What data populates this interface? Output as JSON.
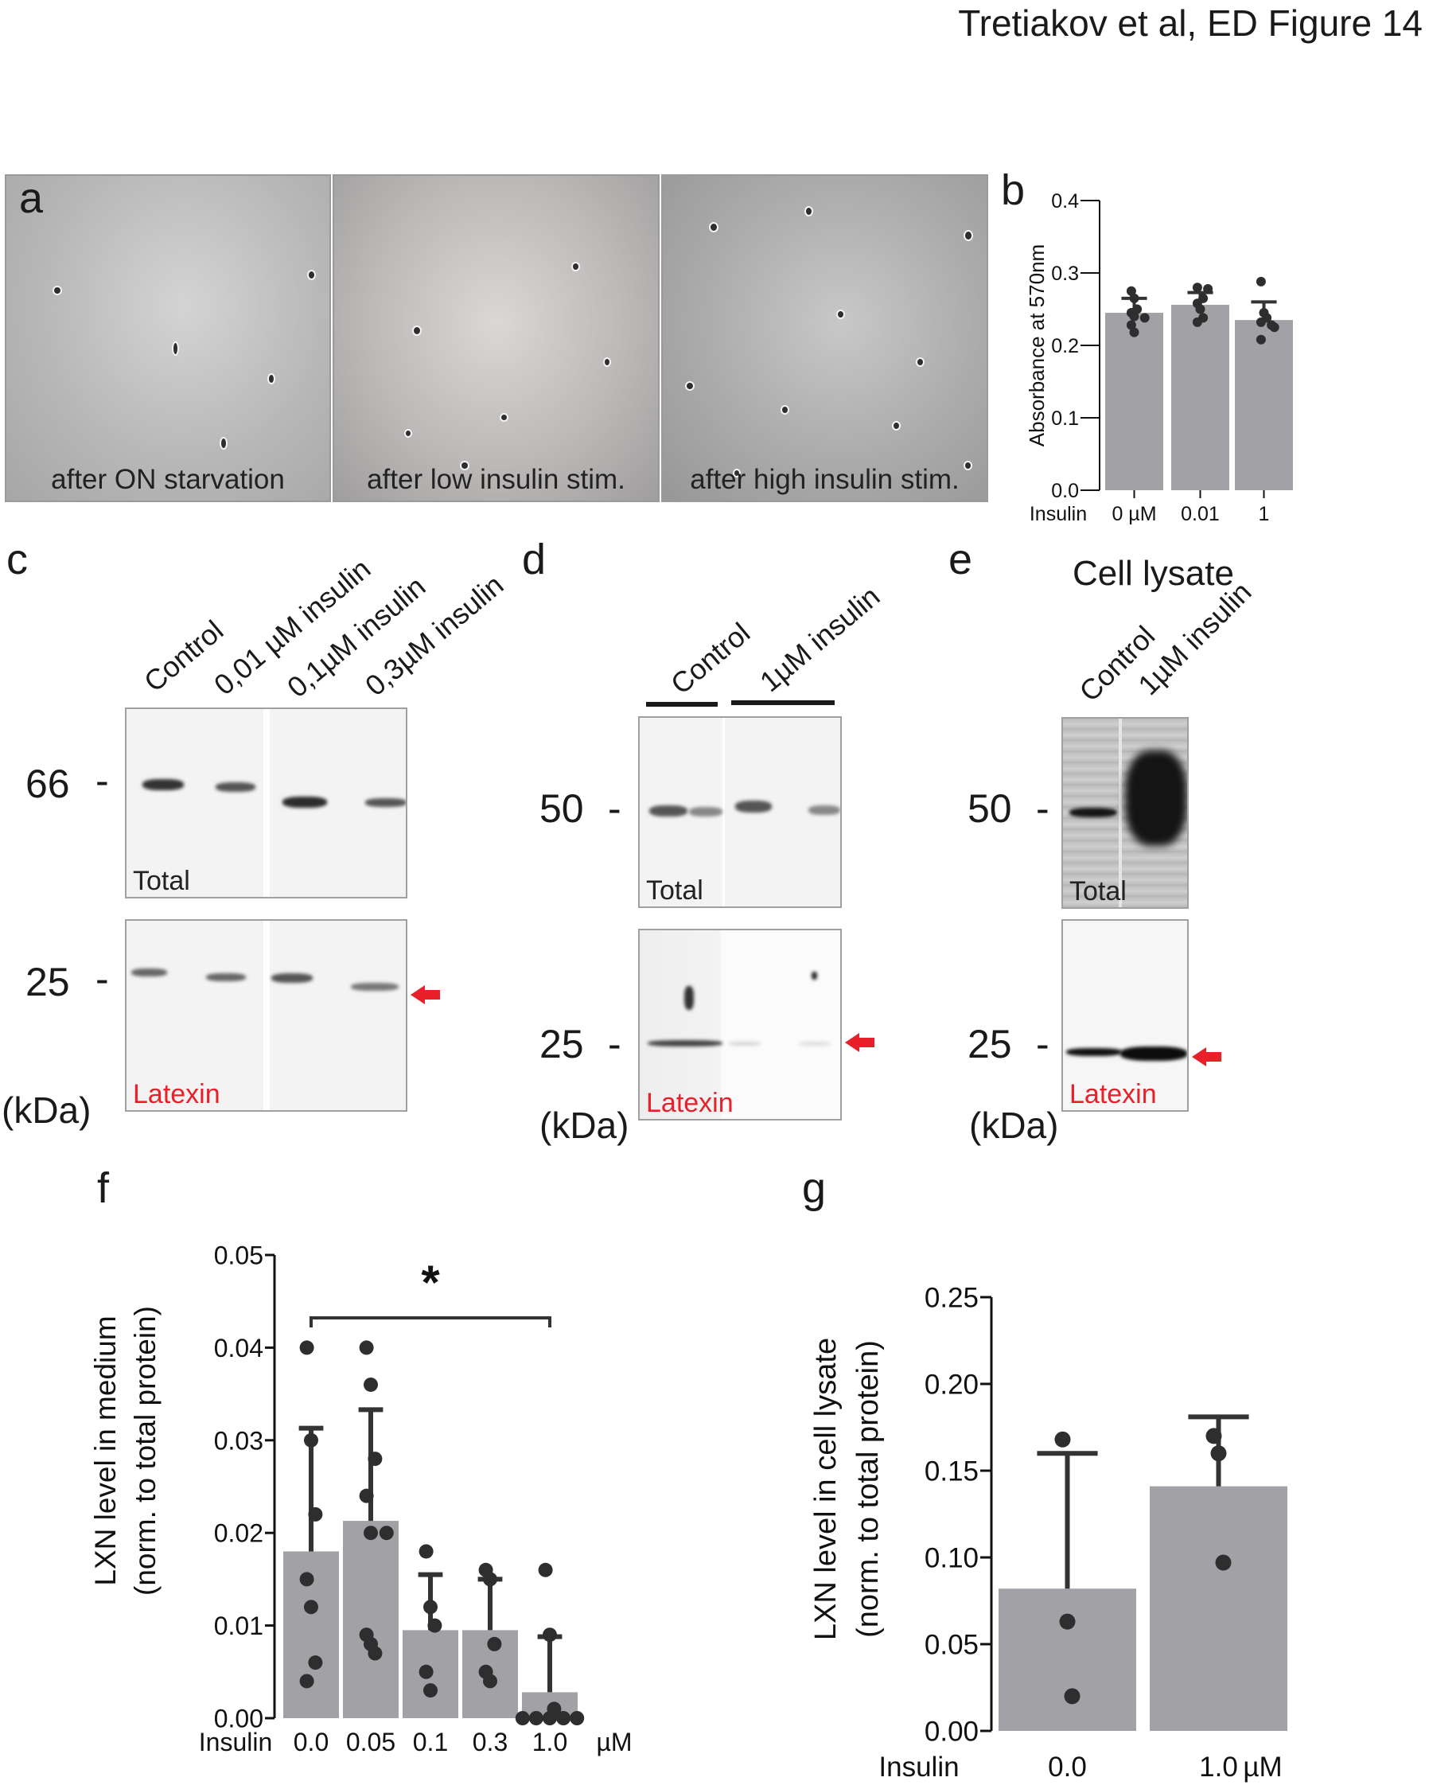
{
  "header": {
    "title": "Tretiakov et al, ED Figure 14"
  },
  "panel_a": {
    "letter": "a",
    "images": [
      {
        "caption": "after ON starvation"
      },
      {
        "caption": "after low insulin stim."
      },
      {
        "caption": "after high insulin stim."
      }
    ]
  },
  "panel_c": {
    "letter": "c",
    "lanes": [
      "Control",
      "0,01 µM insulin",
      "0,1µM insulin",
      "0,3µM insulin"
    ],
    "marker_top": "66",
    "marker_bottom": "25",
    "dash": "-",
    "unit": "(kDa)",
    "top_label": "Total",
    "bottom_label": "Latexin"
  },
  "panel_d": {
    "letter": "d",
    "lanes": [
      "Control",
      "1µM insulin"
    ],
    "marker_top": "50",
    "marker_bottom": "25",
    "dash": "-",
    "unit": "(kDa)",
    "top_label": "Total",
    "bottom_label": "Latexin"
  },
  "panel_e": {
    "letter": "e",
    "heading": "Cell lysate",
    "lanes": [
      "Control",
      "1µM insulin"
    ],
    "marker_top": "50",
    "marker_bottom": "25",
    "dash": "-",
    "unit": "(kDa)",
    "top_label": "Total",
    "bottom_label": "Latexin"
  },
  "panel_f": {
    "letter": "f",
    "significance": "*"
  },
  "panel_g": {
    "letter": "g"
  },
  "colors": {
    "bar": "#a2a1a6",
    "point": "#2e2e2e",
    "arrow": "#e8202a"
  },
  "chart_data": [
    {
      "id": "b",
      "type": "bar",
      "ylabel": "Absorbance at 570nm",
      "xlabel_prefix": "Insulin",
      "categories": [
        "0  µM",
        "0.01",
        "1"
      ],
      "ylim": [
        0,
        0.4
      ],
      "yticks": [
        "0.0",
        "0.1",
        "0.2",
        "0.3",
        "0.4"
      ],
      "values": [
        0.245,
        0.256,
        0.235
      ],
      "error_upper": [
        0.265,
        0.273,
        0.26
      ],
      "points": [
        [
          0.275,
          0.265,
          0.25,
          0.245,
          0.24,
          0.238,
          0.228,
          0.218
        ],
        [
          0.28,
          0.278,
          0.265,
          0.258,
          0.25,
          0.238,
          0.232
        ],
        [
          0.288,
          0.245,
          0.238,
          0.232,
          0.228,
          0.225,
          0.208
        ]
      ]
    },
    {
      "id": "f",
      "type": "bar",
      "ylabel": "LXN level in medium",
      "ylabel2": "(norm. to total protein)",
      "xlabel_prefix": "Insulin",
      "unit": "µM",
      "categories": [
        "0.0",
        "0.05",
        "0.1",
        "0.3",
        "1.0"
      ],
      "ylim": [
        0,
        0.05
      ],
      "yticks": [
        "0.00",
        "0.01",
        "0.02",
        "0.03",
        "0.04",
        "0.05"
      ],
      "values": [
        0.018,
        0.0213,
        0.0095,
        0.0095,
        0.0028
      ],
      "error_upper": [
        0.0313,
        0.0333,
        0.0155,
        0.015,
        0.0088
      ],
      "points": [
        [
          0.04,
          0.03,
          0.022,
          0.015,
          0.012,
          0.006,
          0.004
        ],
        [
          0.04,
          0.036,
          0.028,
          0.024,
          0.02,
          0.02,
          0.009,
          0.008,
          0.007
        ],
        [
          0.018,
          0.012,
          0.01,
          0.005,
          0.003
        ],
        [
          0.016,
          0.015,
          0.008,
          0.005,
          0.004
        ],
        [
          0.016,
          0.009,
          0.001,
          0,
          0,
          0,
          0,
          0
        ]
      ],
      "significance": {
        "between": [
          "0.0",
          "1.0"
        ],
        "label": "*"
      }
    },
    {
      "id": "g",
      "type": "bar",
      "ylabel": "LXN level in cell lysate",
      "ylabel2": "(norm. to total protein)",
      "xlabel_prefix": "Insulin",
      "unit": "µM",
      "categories": [
        "0.0",
        "1.0"
      ],
      "ylim": [
        0,
        0.25
      ],
      "yticks": [
        "0.00",
        "0.05",
        "0.10",
        "0.15",
        "0.20",
        "0.25"
      ],
      "values": [
        0.082,
        0.141
      ],
      "error_upper": [
        0.16,
        0.181
      ],
      "points": [
        [
          0.168,
          0.063,
          0.02
        ],
        [
          0.17,
          0.16,
          0.097
        ]
      ]
    }
  ]
}
